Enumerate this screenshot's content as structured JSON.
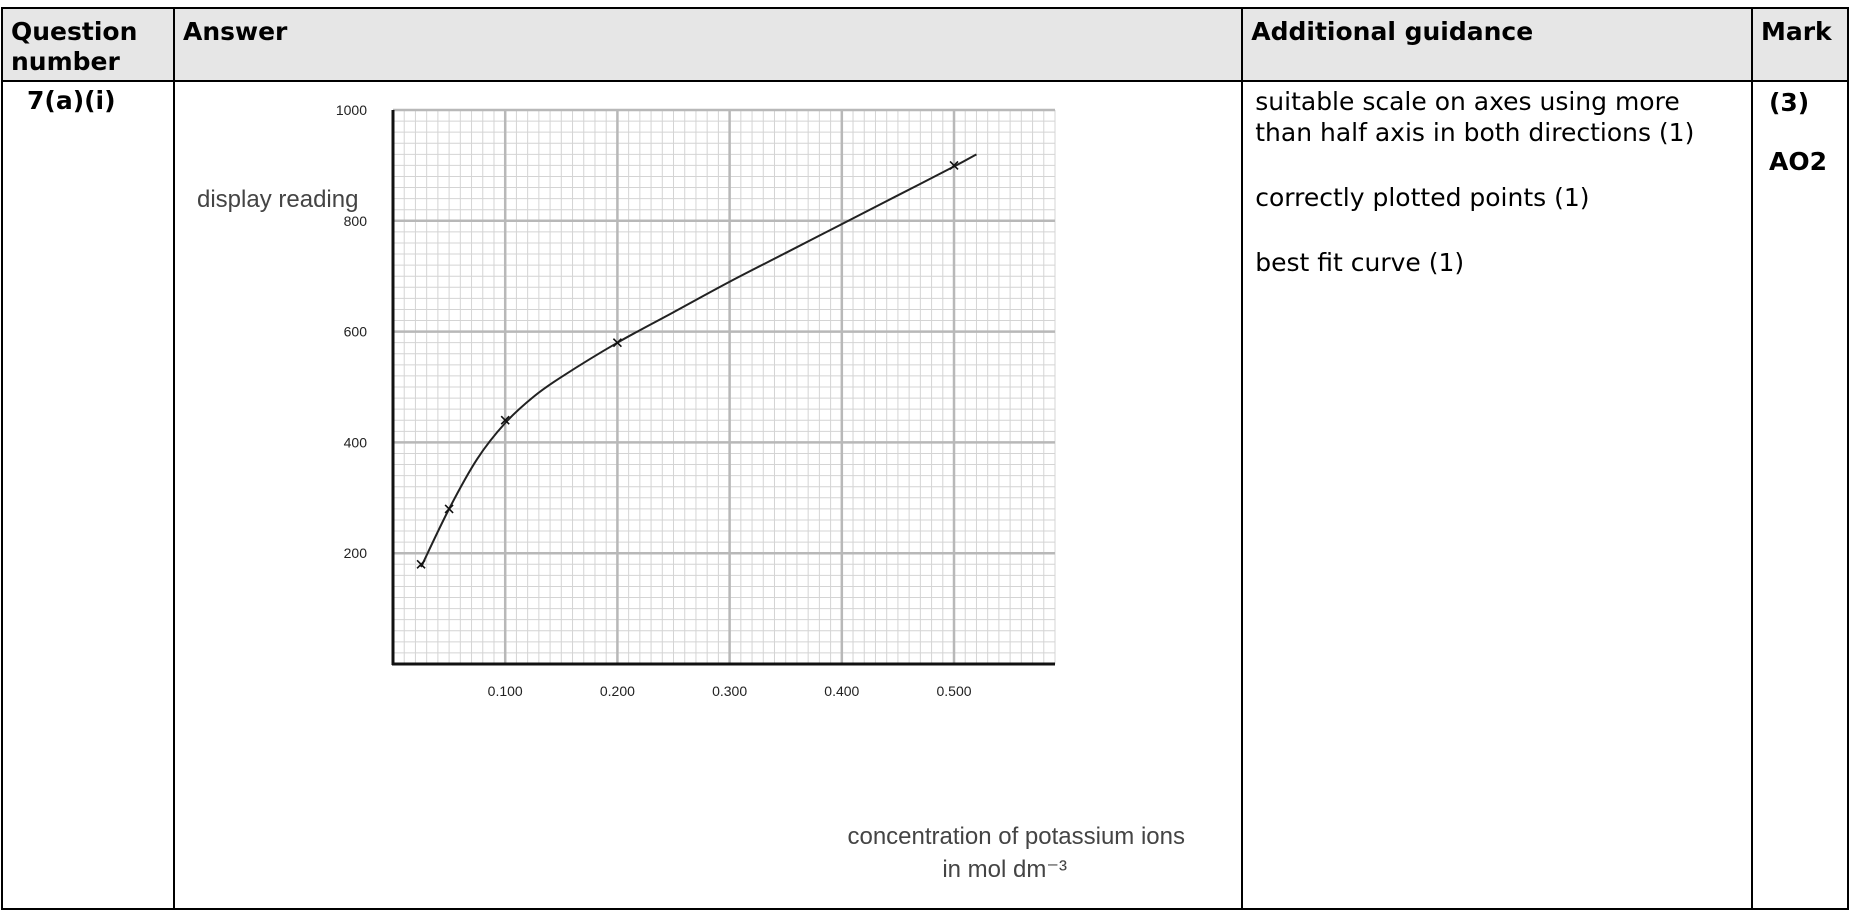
{
  "table": {
    "headers": {
      "question": "Question number",
      "answer": "Answer",
      "guidance": "Additional guidance",
      "mark": "Mark"
    },
    "row": {
      "question_number": "7(a)(i)",
      "guidance": [
        "suitable scale on axes using more than half axis in both directions (1)",
        "correctly plotted points (1)",
        "best fit curve (1)"
      ],
      "mark": "(3)",
      "assessment_objective": "AO2"
    }
  },
  "chart_data": {
    "type": "line",
    "title": "",
    "ylabel": "display reading",
    "xlabel_line1": "concentration of potassium ions",
    "xlabel_line2": "in mol dm⁻³",
    "xlim": [
      0,
      0.59
    ],
    "ylim": [
      0,
      1000
    ],
    "x_ticks": [
      {
        "value": 0.1,
        "label": "0.100"
      },
      {
        "value": 0.2,
        "label": "0.200"
      },
      {
        "value": 0.3,
        "label": "0.300"
      },
      {
        "value": 0.4,
        "label": "0.400"
      },
      {
        "value": 0.5,
        "label": "0.500"
      }
    ],
    "y_ticks": [
      {
        "value": 200,
        "label": "200"
      },
      {
        "value": 400,
        "label": "400"
      },
      {
        "value": 600,
        "label": "600"
      },
      {
        "value": 800,
        "label": "800"
      },
      {
        "value": 1000,
        "label": "1000"
      }
    ],
    "points": [
      {
        "x": 0.025,
        "y": 180
      },
      {
        "x": 0.05,
        "y": 280
      },
      {
        "x": 0.1,
        "y": 440
      },
      {
        "x": 0.2,
        "y": 580
      },
      {
        "x": 0.5,
        "y": 900
      }
    ],
    "curve": [
      [
        0.025,
        175
      ],
      [
        0.05,
        280
      ],
      [
        0.075,
        370
      ],
      [
        0.1,
        435
      ],
      [
        0.125,
        482
      ],
      [
        0.15,
        518
      ],
      [
        0.2,
        580
      ],
      [
        0.25,
        635
      ],
      [
        0.3,
        690
      ],
      [
        0.35,
        742
      ],
      [
        0.4,
        794
      ],
      [
        0.45,
        846
      ],
      [
        0.5,
        898
      ],
      [
        0.52,
        920
      ]
    ],
    "grid": true
  }
}
